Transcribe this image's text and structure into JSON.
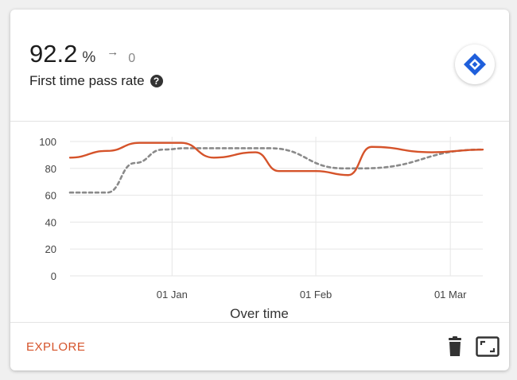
{
  "kpi": {
    "value": "92.2",
    "unit": "%",
    "trend_arrow": "→",
    "trend_value": "0",
    "label": "First time pass rate",
    "help_icon": "help-icon",
    "help_glyph": "?"
  },
  "logo_icon": "jira-diamond-icon",
  "colors": {
    "accent": "#d5532a",
    "series_actual": "#d5532a",
    "series_baseline": "#8a8a8a",
    "logo": "#1f5fdb"
  },
  "footer": {
    "explore_label": "EXPLORE",
    "delete_icon": "trash-icon",
    "expand_icon": "expand-icon"
  },
  "chart_data": {
    "type": "line",
    "xlabel": "Over time",
    "ylabel": "",
    "ylim": [
      0,
      100
    ],
    "yticks": [
      0,
      20,
      40,
      60,
      80,
      100
    ],
    "grid": true,
    "x_tick_labels": [
      {
        "label": "01 Jan",
        "date": "2024-01-01"
      },
      {
        "label": "01 Feb",
        "date": "2024-02-01"
      },
      {
        "label": "01 Mar",
        "date": "2024-03-01"
      }
    ],
    "series": [
      {
        "style": "solid",
        "points": [
          {
            "date": "2023-12-10",
            "value": 88
          },
          {
            "date": "2023-12-18",
            "value": 93
          },
          {
            "date": "2023-12-25",
            "value": 99
          },
          {
            "date": "2024-01-03",
            "value": 99
          },
          {
            "date": "2024-01-10",
            "value": 88
          },
          {
            "date": "2024-01-19",
            "value": 92
          },
          {
            "date": "2024-01-24",
            "value": 78
          },
          {
            "date": "2024-02-01",
            "value": 78
          },
          {
            "date": "2024-02-08",
            "value": 75
          },
          {
            "date": "2024-02-13",
            "value": 96
          },
          {
            "date": "2024-02-26",
            "value": 92
          },
          {
            "date": "2024-03-08",
            "value": 94
          }
        ]
      },
      {
        "style": "dashed",
        "points": [
          {
            "date": "2023-12-10",
            "value": 62
          },
          {
            "date": "2023-12-18",
            "value": 62
          },
          {
            "date": "2023-12-24",
            "value": 84
          },
          {
            "date": "2023-12-30",
            "value": 94
          },
          {
            "date": "2024-01-04",
            "value": 95
          },
          {
            "date": "2024-01-22",
            "value": 95
          },
          {
            "date": "2024-02-07",
            "value": 80
          },
          {
            "date": "2024-02-11",
            "value": 80
          },
          {
            "date": "2024-03-08",
            "value": 94
          }
        ]
      }
    ]
  }
}
